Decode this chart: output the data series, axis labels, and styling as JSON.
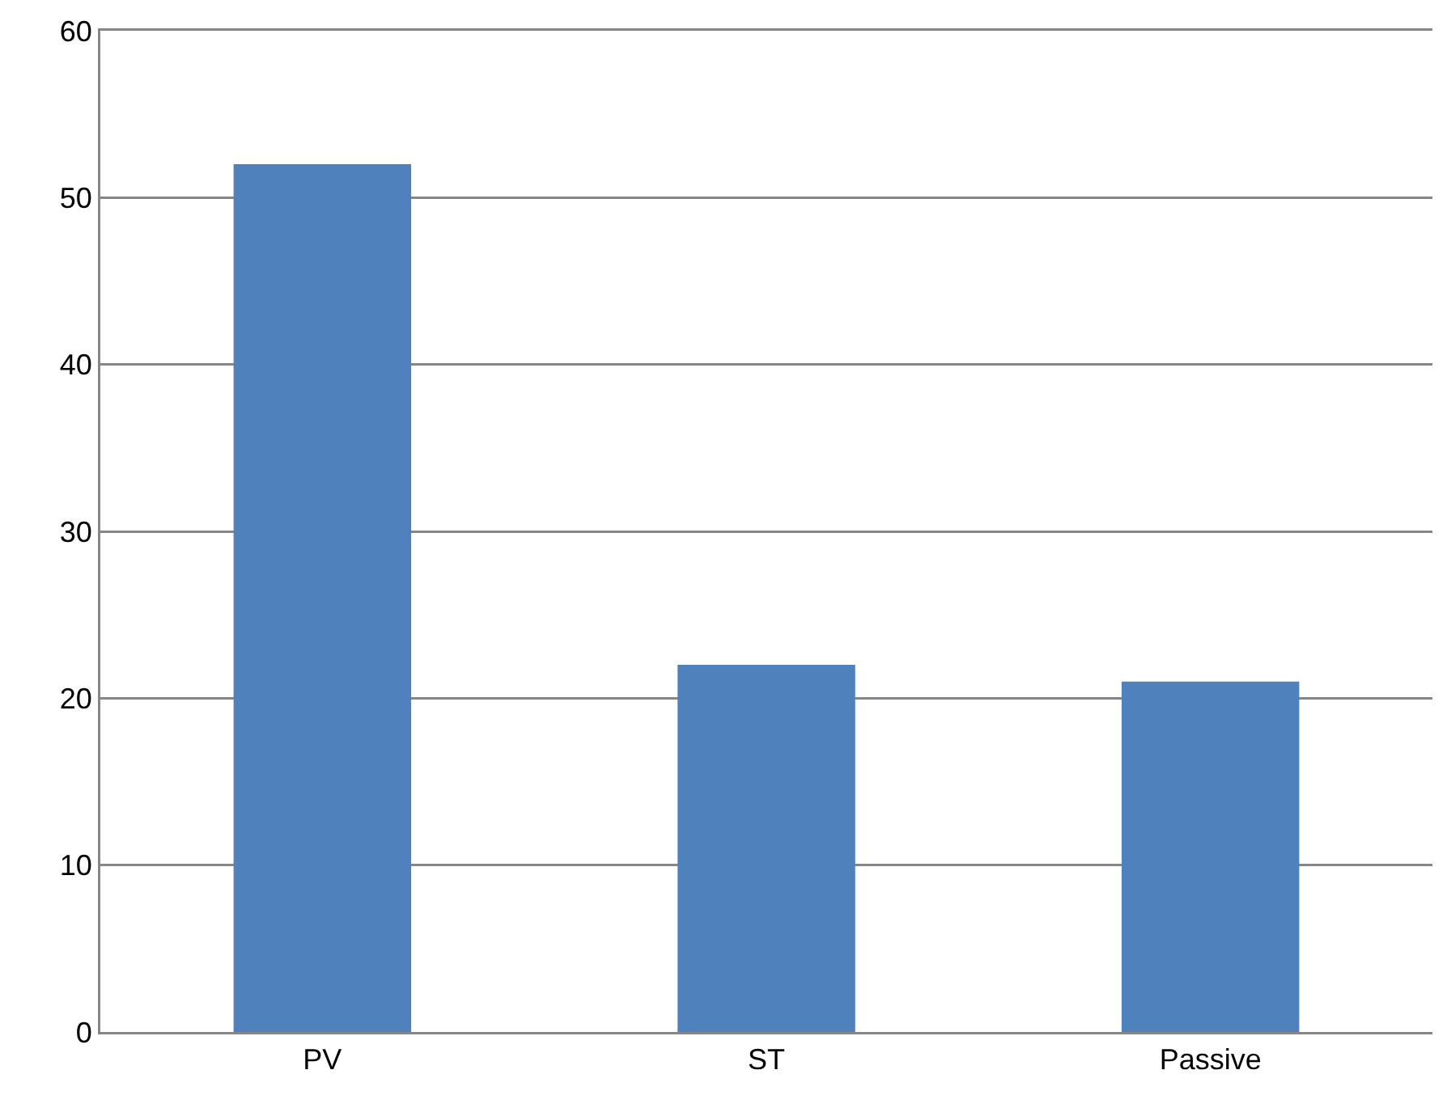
{
  "chart_data": {
    "type": "bar",
    "categories": [
      "PV",
      "ST",
      "Passive"
    ],
    "values": [
      52,
      22,
      21
    ],
    "color": "#4f81bd",
    "ylim": [
      0,
      60
    ],
    "yticks": [
      0,
      10,
      20,
      30,
      40,
      50,
      60
    ],
    "grid": "y"
  }
}
